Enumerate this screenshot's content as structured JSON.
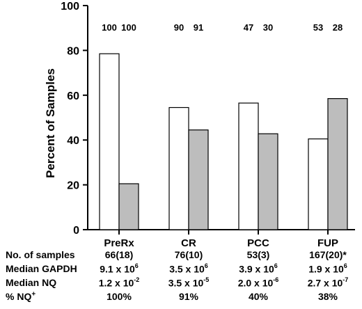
{
  "chart_data": {
    "type": "bar",
    "ylabel": "Percent of Samples",
    "ylim": [
      0,
      100
    ],
    "yticks": [
      0,
      20,
      40,
      60,
      80,
      100
    ],
    "categories": [
      "PreRx",
      "CR",
      "PCC",
      "FUP"
    ],
    "series": [
      {
        "values": [
          78.5,
          54.5,
          56.5,
          40.5
        ],
        "color": "#ffffff"
      },
      {
        "values": [
          20.5,
          44.5,
          42.8,
          58.5
        ],
        "color": "#bdbdbd"
      }
    ],
    "top_labels": [
      [
        "100",
        "100"
      ],
      [
        "90",
        "91"
      ],
      [
        "47",
        "30"
      ],
      [
        "53",
        "28"
      ]
    ]
  },
  "table": {
    "rows": [
      {
        "label": "No. of samples",
        "cells": [
          {
            "text": "66(18)"
          },
          {
            "text": "76(10)"
          },
          {
            "text": "53(3)"
          },
          {
            "text": "167(20)*"
          }
        ]
      },
      {
        "label": "Median GAPDH",
        "cells": [
          {
            "base": "9.1 x 10",
            "exp": "6"
          },
          {
            "base": "3.5 x 10",
            "exp": "6"
          },
          {
            "base": "3.9 x 10",
            "exp": "6"
          },
          {
            "base": "1.9 x 10",
            "exp": "6"
          }
        ]
      },
      {
        "label": "Median NQ",
        "cells": [
          {
            "base": "1.2 x 10",
            "exp": "-2"
          },
          {
            "base": "3.5 x 10",
            "exp": "-5"
          },
          {
            "base": "2.0 x 10",
            "exp": "-6"
          },
          {
            "base": "2.7 x 10",
            "exp": "-7"
          }
        ]
      },
      {
        "label": "% NQ",
        "label_sup": "+",
        "cells": [
          {
            "text": "100%"
          },
          {
            "text": "91%"
          },
          {
            "text": "40%"
          },
          {
            "text": "38%"
          }
        ]
      }
    ]
  }
}
